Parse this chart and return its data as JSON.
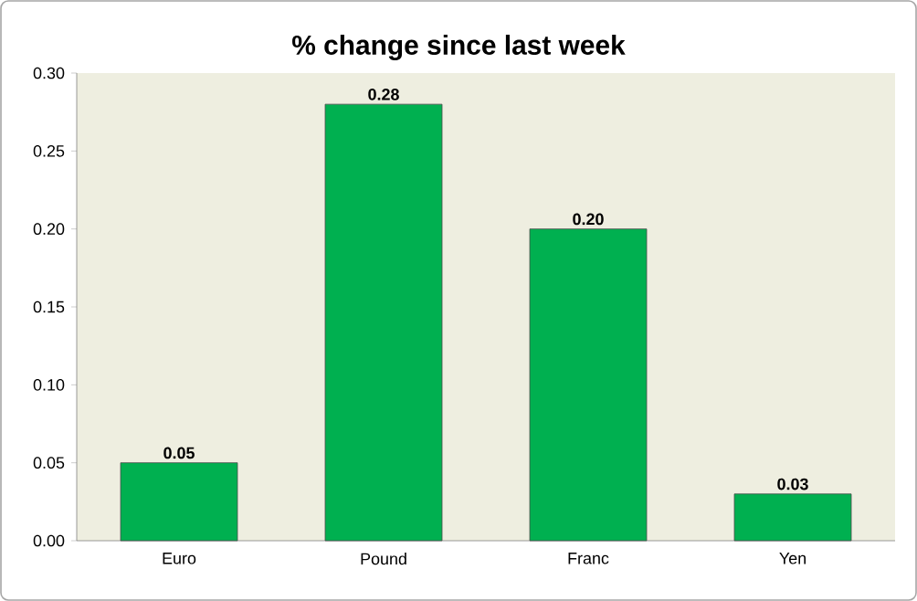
{
  "chart_data": {
    "type": "bar",
    "title": "% change since last week",
    "categories": [
      "Euro",
      "Pound",
      "Franc",
      "Yen"
    ],
    "values": [
      0.05,
      0.28,
      0.2,
      0.03
    ],
    "value_labels": [
      "0.05",
      "0.28",
      "0.20",
      "0.03"
    ],
    "color": "#00b050",
    "ylim": [
      0,
      0.3
    ],
    "yticks": [
      {
        "value": 0,
        "label": "0.00"
      },
      {
        "value": 0.05,
        "label": "0.05"
      },
      {
        "value": 0.1,
        "label": "0.10"
      },
      {
        "value": 0.15,
        "label": "0.15"
      },
      {
        "value": 0.2,
        "label": "0.20"
      },
      {
        "value": 0.25,
        "label": "0.25"
      },
      {
        "value": 0.3,
        "label": "0.30"
      }
    ],
    "grid": false
  }
}
